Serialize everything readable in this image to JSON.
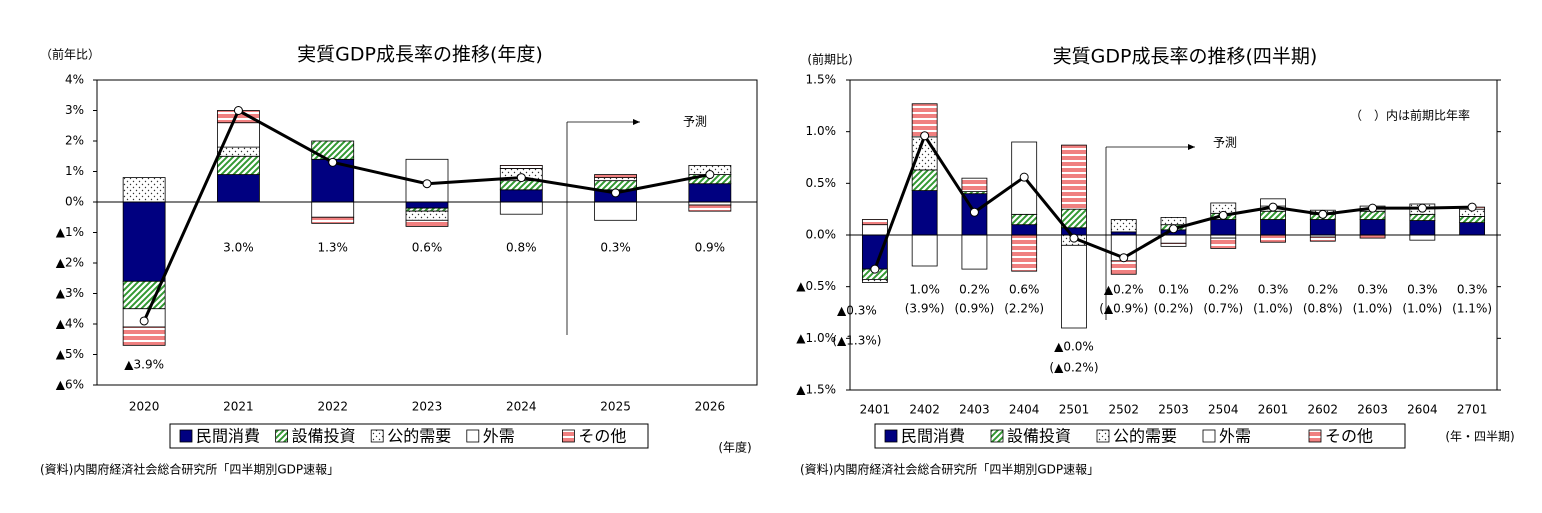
{
  "chart_data": [
    {
      "type": "bar",
      "stacked": true,
      "title": "実質GDP成長率の推移(年度)",
      "ylabel": "（前年比）",
      "xlabel": "(年度)",
      "source": "(資料)内閣府経済社会総合研究所「四半期別GDP速報」",
      "annotation": "予測",
      "categories": [
        "2020",
        "2021",
        "2022",
        "2023",
        "2024",
        "2025",
        "2026"
      ],
      "ylim": [
        -6,
        4
      ],
      "yticks": [
        {
          "value": 4,
          "label": "4%"
        },
        {
          "value": 3,
          "label": "3%"
        },
        {
          "value": 2,
          "label": "2%"
        },
        {
          "value": 1,
          "label": "1%"
        },
        {
          "value": 0,
          "label": "0%"
        },
        {
          "value": -1,
          "label": "▲1%"
        },
        {
          "value": -2,
          "label": "▲2%"
        },
        {
          "value": -3,
          "label": "▲3%"
        },
        {
          "value": -4,
          "label": "▲4%"
        },
        {
          "value": -5,
          "label": "▲5%"
        },
        {
          "value": -6,
          "label": "▲6%"
        }
      ],
      "series": [
        {
          "name": "民間消費",
          "color": "#000080",
          "pattern": "solid",
          "values": [
            -2.6,
            0.9,
            1.4,
            -0.2,
            0.4,
            0.4,
            0.6
          ]
        },
        {
          "name": "設備投資",
          "color": "#339933",
          "pattern": "hatch",
          "values": [
            -0.9,
            0.6,
            0.6,
            -0.1,
            0.3,
            0.3,
            0.3
          ]
        },
        {
          "name": "公的需要",
          "color": "#333333",
          "pattern": "dots",
          "values": [
            0.8,
            0.3,
            0,
            -0.3,
            0.4,
            0.1,
            0.3
          ]
        },
        {
          "name": "外需",
          "color": "#ffffff",
          "pattern": "none",
          "values": [
            -0.6,
            0.8,
            -0.5,
            1.4,
            -0.4,
            -0.6,
            -0.1
          ]
        },
        {
          "name": "その他",
          "color": "#f08080",
          "pattern": "stripes",
          "values": [
            -0.6,
            0.4,
            -0.2,
            -0.2,
            0.1,
            0.1,
            -0.2
          ]
        }
      ],
      "line": {
        "color": "#000000",
        "values": [
          -3.9,
          3.0,
          1.3,
          0.6,
          0.8,
          0.3,
          0.9
        ],
        "value_labels": [
          "▲3.9%",
          "3.0%",
          "1.3%",
          "0.6%",
          "0.8%",
          "0.3%",
          "0.9%"
        ]
      }
    },
    {
      "type": "bar",
      "stacked": true,
      "title": "実質GDP成長率の推移(四半期)",
      "ylabel": "(前期比)",
      "xlabel": "(年・四半期)",
      "source": "(資料)内閣府経済社会総合研究所「四半期別GDP速報」",
      "annotation": "予測",
      "note": "（　）内は前期比年率",
      "categories": [
        "2401",
        "2402",
        "2403",
        "2404",
        "2501",
        "2502",
        "2503",
        "2504",
        "2601",
        "2602",
        "2603",
        "2604",
        "2701"
      ],
      "ylim": [
        -1.5,
        1.5
      ],
      "yticks": [
        {
          "value": 1.5,
          "label": "1.5%"
        },
        {
          "value": 1.0,
          "label": "1.0%"
        },
        {
          "value": 0.5,
          "label": "0.5%"
        },
        {
          "value": 0,
          "label": "0.0%"
        },
        {
          "value": -0.5,
          "label": "▲0.5%"
        },
        {
          "value": -1.0,
          "label": "▲1.0%"
        },
        {
          "value": -1.5,
          "label": "▲1.5%"
        }
      ],
      "series": [
        {
          "name": "民間消費",
          "color": "#000080",
          "pattern": "solid",
          "values": [
            -0.33,
            0.43,
            0.4,
            0.1,
            0.07,
            0.03,
            0.05,
            0.15,
            0.15,
            0.15,
            0.15,
            0.14,
            0.12
          ]
        },
        {
          "name": "設備投資",
          "color": "#339933",
          "pattern": "hatch",
          "values": [
            -0.1,
            0.2,
            0.02,
            0.1,
            0.18,
            0,
            0.05,
            0.06,
            0.08,
            0.05,
            0.08,
            0.06,
            0.06
          ]
        },
        {
          "name": "公的需要",
          "color": "#333333",
          "pattern": "dots",
          "values": [
            -0.03,
            0.32,
            0,
            0,
            -0.1,
            0.12,
            0.07,
            0.1,
            0.05,
            0.04,
            0.05,
            0.1,
            0.07
          ]
        },
        {
          "name": "外需",
          "color": "#ffffff",
          "pattern": "none",
          "values": [
            0.1,
            -0.3,
            -0.33,
            0.7,
            -0.8,
            -0.25,
            -0.08,
            -0.03,
            0.07,
            -0.02,
            0,
            -0.05,
            0
          ]
        },
        {
          "name": "その他",
          "color": "#f08080",
          "pattern": "stripes",
          "values": [
            0.05,
            0.32,
            0.13,
            -0.35,
            0.62,
            -0.13,
            -0.03,
            -0.1,
            -0.07,
            -0.04,
            -0.03,
            0,
            0.02
          ]
        }
      ],
      "line": {
        "color": "#000000",
        "values": [
          -0.33,
          0.96,
          0.22,
          0.56,
          -0.03,
          -0.22,
          0.06,
          0.19,
          0.27,
          0.2,
          0.26,
          0.26,
          0.27
        ],
        "value_labels": [
          "▲0.3%",
          "1.0%",
          "0.2%",
          "0.6%",
          "▲0.0%",
          "▲0.2%",
          "0.1%",
          "0.2%",
          "0.3%",
          "0.2%",
          "0.3%",
          "0.3%",
          "0.3%"
        ]
      },
      "annualized": {
        "values": [
          -1.3,
          3.9,
          0.9,
          2.2,
          -0.2,
          -0.9,
          0.2,
          0.7,
          1.0,
          0.8,
          1.0,
          1.0,
          1.1
        ],
        "value_labels": [
          "(▲1.3%)",
          "(3.9%)",
          "(0.9%)",
          "(2.2%)",
          "(▲0.2%)",
          "(▲0.9%)",
          "(0.2%)",
          "(0.7%)",
          "(1.0%)",
          "(0.8%)",
          "(1.0%)",
          "(1.0%)",
          "(1.1%)"
        ]
      }
    }
  ]
}
